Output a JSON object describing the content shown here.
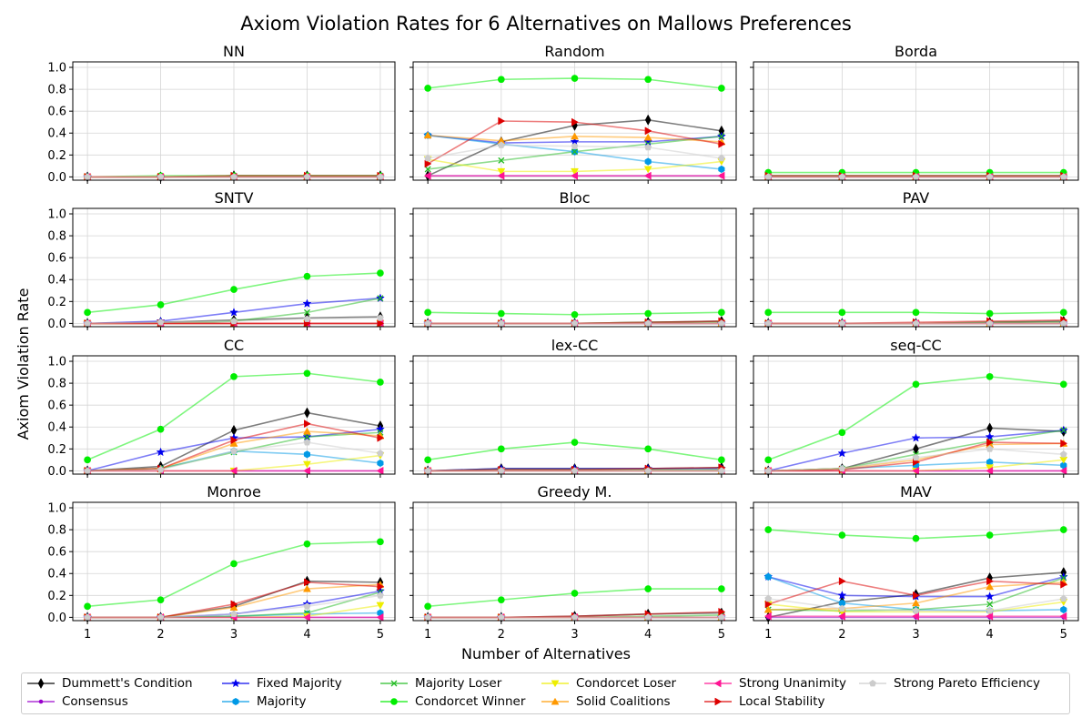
{
  "chart_data": {
    "type": "line",
    "title": "Axiom Violation Rates for 6 Alternatives on Mallows Preferences",
    "xlabel": "Number of Alternatives",
    "ylabel": "Axiom Violation Rate",
    "x": [
      1,
      2,
      3,
      4,
      5
    ],
    "xticks": [
      "1",
      "2",
      "3",
      "4",
      "5"
    ],
    "ylim": [
      -0.03,
      1.05
    ],
    "yticks": [
      "0.0",
      "0.2",
      "0.4",
      "0.6",
      "0.8",
      "1.0"
    ],
    "grid": true,
    "legend_placement": "bottom",
    "series_styles": [
      {
        "name": "Dummett's Condition",
        "color": "#000000",
        "marker": "thin_diamond"
      },
      {
        "name": "Consensus",
        "color": "#9900cc",
        "marker": "dot"
      },
      {
        "name": "Fixed Majority",
        "color": "#0000ee",
        "marker": "star"
      },
      {
        "name": "Majority",
        "color": "#0099e6",
        "marker": "hexagon"
      },
      {
        "name": "Majority Loser",
        "color": "#22bb22",
        "marker": "x"
      },
      {
        "name": "Condorcet Winner",
        "color": "#00ee00",
        "marker": "circle"
      },
      {
        "name": "Condorcet Loser",
        "color": "#eeee00",
        "marker": "triangle_down"
      },
      {
        "name": "Solid Coalitions",
        "color": "#ff9900",
        "marker": "triangle_up"
      },
      {
        "name": "Strong Unanimity",
        "color": "#ff1493",
        "marker": "triangle_left"
      },
      {
        "name": "Local Stability",
        "color": "#dd0000",
        "marker": "triangle_right"
      },
      {
        "name": "Strong Pareto Efficiency",
        "color": "#cccccc",
        "marker": "pentagon"
      }
    ],
    "subplots": [
      {
        "title": "NN",
        "values": [
          [
            0,
            0,
            0.01,
            0.01,
            0.01
          ],
          [
            0,
            0,
            0,
            0,
            0
          ],
          [
            0,
            0,
            0,
            0,
            0
          ],
          [
            0,
            0,
            0,
            0,
            0
          ],
          [
            0,
            0,
            0.01,
            0.01,
            0.01
          ],
          [
            0,
            0.01,
            0.01,
            0.01,
            0.01
          ],
          [
            0,
            0,
            0,
            0,
            0
          ],
          [
            0,
            0,
            0,
            0,
            0
          ],
          [
            0,
            0,
            0,
            0,
            0
          ],
          [
            0,
            0,
            0.01,
            0.01,
            0.01
          ],
          [
            0,
            0,
            0,
            0,
            0
          ]
        ]
      },
      {
        "title": "Random",
        "values": [
          [
            0.01,
            0.32,
            0.47,
            0.52,
            0.42
          ],
          [
            0.01,
            0.01,
            0.01,
            0.01,
            0.01
          ],
          [
            0.38,
            0.31,
            0.32,
            0.32,
            0.37
          ],
          [
            0.38,
            0.3,
            0.23,
            0.14,
            0.07
          ],
          [
            0.07,
            0.15,
            0.23,
            0.3,
            0.37
          ],
          [
            0.81,
            0.89,
            0.9,
            0.89,
            0.81
          ],
          [
            0.16,
            0.05,
            0.05,
            0.07,
            0.14
          ],
          [
            0.38,
            0.33,
            0.37,
            0.36,
            0.32
          ],
          [
            0.01,
            0.01,
            0.01,
            0.01,
            0.01
          ],
          [
            0.12,
            0.51,
            0.5,
            0.42,
            0.3
          ],
          [
            0.17,
            0.29,
            0.28,
            0.27,
            0.17
          ]
        ]
      },
      {
        "title": "Borda",
        "values": [
          [
            0.01,
            0.01,
            0.01,
            0.01,
            0.01
          ],
          [
            0,
            0,
            0,
            0,
            0
          ],
          [
            0,
            0,
            0,
            0,
            0
          ],
          [
            0,
            0,
            0,
            0,
            0
          ],
          [
            0.01,
            0.01,
            0.01,
            0.01,
            0.01
          ],
          [
            0.04,
            0.04,
            0.04,
            0.04,
            0.04
          ],
          [
            0,
            0,
            0,
            0,
            0
          ],
          [
            0,
            0,
            0,
            0,
            0
          ],
          [
            0,
            0,
            0,
            0,
            0
          ],
          [
            0.01,
            0.01,
            0.01,
            0.01,
            0.01
          ],
          [
            0,
            0,
            0,
            0,
            0
          ]
        ]
      },
      {
        "title": "SNTV",
        "values": [
          [
            0,
            0.01,
            0.03,
            0.05,
            0.06
          ],
          [
            0,
            0,
            0,
            0,
            0
          ],
          [
            0,
            0.02,
            0.1,
            0.18,
            0.23
          ],
          [
            0,
            0,
            0,
            0,
            0
          ],
          [
            0,
            0,
            0.02,
            0.1,
            0.23
          ],
          [
            0.1,
            0.17,
            0.31,
            0.43,
            0.46
          ],
          [
            0,
            0,
            0,
            0,
            0
          ],
          [
            0,
            0,
            0,
            0,
            0
          ],
          [
            0,
            0,
            0,
            0,
            0
          ],
          [
            0,
            0,
            0,
            0,
            0
          ],
          [
            0,
            0.01,
            0.02,
            0.04,
            0.05
          ]
        ]
      },
      {
        "title": "Bloc",
        "values": [
          [
            0,
            0,
            0,
            0.01,
            0.02
          ],
          [
            0,
            0,
            0,
            0,
            0
          ],
          [
            0,
            0,
            0,
            0,
            0
          ],
          [
            0,
            0,
            0,
            0,
            0
          ],
          [
            0,
            0,
            0,
            0.01,
            0.01
          ],
          [
            0.1,
            0.09,
            0.08,
            0.09,
            0.1
          ],
          [
            0,
            0,
            0,
            0,
            0
          ],
          [
            0,
            0,
            0,
            0,
            0
          ],
          [
            0,
            0,
            0,
            0,
            0
          ],
          [
            0,
            0,
            0,
            0.01,
            0.02
          ],
          [
            0,
            0,
            0,
            0,
            0
          ]
        ]
      },
      {
        "title": "PAV",
        "values": [
          [
            0,
            0,
            0,
            0.01,
            0.02
          ],
          [
            0,
            0,
            0,
            0,
            0
          ],
          [
            0,
            0,
            0,
            0,
            0
          ],
          [
            0,
            0,
            0,
            0,
            0
          ],
          [
            0,
            0,
            0,
            0.01,
            0.01
          ],
          [
            0.1,
            0.1,
            0.1,
            0.09,
            0.1
          ],
          [
            0,
            0,
            0,
            0,
            0
          ],
          [
            0,
            0,
            0,
            0,
            0
          ],
          [
            0,
            0,
            0,
            0,
            0
          ],
          [
            0,
            0,
            0.01,
            0.02,
            0.03
          ],
          [
            0,
            0,
            0,
            0,
            0
          ]
        ]
      },
      {
        "title": "CC",
        "values": [
          [
            0,
            0.04,
            0.37,
            0.53,
            0.41
          ],
          [
            0,
            0,
            0,
            0,
            0
          ],
          [
            0,
            0.17,
            0.3,
            0.31,
            0.38
          ],
          [
            0,
            0.02,
            0.18,
            0.15,
            0.07
          ],
          [
            0,
            0.02,
            0.17,
            0.31,
            0.35
          ],
          [
            0.1,
            0.38,
            0.86,
            0.89,
            0.81
          ],
          [
            0,
            0,
            0,
            0.06,
            0.14
          ],
          [
            0,
            0.02,
            0.25,
            0.36,
            0.32
          ],
          [
            0,
            0,
            0,
            0,
            0
          ],
          [
            0,
            0.02,
            0.28,
            0.43,
            0.3
          ],
          [
            0,
            0.01,
            0.18,
            0.26,
            0.16
          ]
        ]
      },
      {
        "title": "lex-CC",
        "values": [
          [
            0,
            0.02,
            0.02,
            0.02,
            0.03
          ],
          [
            0,
            0,
            0,
            0,
            0
          ],
          [
            0,
            0.02,
            0.02,
            0.02,
            0.02
          ],
          [
            0,
            0,
            0,
            0,
            0
          ],
          [
            0,
            0.01,
            0.01,
            0.01,
            0.01
          ],
          [
            0.1,
            0.2,
            0.26,
            0.2,
            0.1
          ],
          [
            0,
            0,
            0,
            0,
            0
          ],
          [
            0,
            0,
            0,
            0,
            0
          ],
          [
            0,
            0,
            0,
            0,
            0
          ],
          [
            0,
            0.01,
            0.01,
            0.02,
            0.03
          ],
          [
            0,
            0,
            0,
            0,
            0
          ]
        ]
      },
      {
        "title": "seq-CC",
        "values": [
          [
            0,
            0.02,
            0.2,
            0.39,
            0.36
          ],
          [
            0,
            0,
            0,
            0,
            0
          ],
          [
            0,
            0.16,
            0.3,
            0.31,
            0.37
          ],
          [
            0,
            0.02,
            0.05,
            0.08,
            0.05
          ],
          [
            0,
            0.02,
            0.15,
            0.27,
            0.37
          ],
          [
            0.1,
            0.35,
            0.79,
            0.86,
            0.79
          ],
          [
            0,
            0,
            0,
            0.03,
            0.1
          ],
          [
            0,
            0.02,
            0.1,
            0.24,
            0.25
          ],
          [
            0,
            0,
            0,
            0,
            0
          ],
          [
            0,
            0.01,
            0.08,
            0.26,
            0.25
          ],
          [
            0,
            0.02,
            0.12,
            0.2,
            0.15
          ]
        ]
      },
      {
        "title": "Monroe",
        "values": [
          [
            0,
            0,
            0.1,
            0.33,
            0.32
          ],
          [
            0,
            0,
            0,
            0,
            0
          ],
          [
            0,
            0,
            0.03,
            0.12,
            0.24
          ],
          [
            0,
            0,
            0.01,
            0.03,
            0.04
          ],
          [
            0,
            0,
            0.01,
            0.04,
            0.23
          ],
          [
            0.1,
            0.16,
            0.49,
            0.67,
            0.69
          ],
          [
            0,
            0,
            0,
            0.01,
            0.11
          ],
          [
            0,
            0,
            0.09,
            0.26,
            0.3
          ],
          [
            0,
            0,
            0,
            0,
            0
          ],
          [
            0,
            0,
            0.12,
            0.32,
            0.28
          ],
          [
            0,
            0,
            0.03,
            0.1,
            0.2
          ]
        ]
      },
      {
        "title": "Greedy M.",
        "values": [
          [
            0,
            0,
            0.01,
            0.03,
            0.04
          ],
          [
            0,
            0,
            0,
            0,
            0
          ],
          [
            0,
            0,
            0,
            0,
            0
          ],
          [
            0,
            0,
            0,
            0,
            0
          ],
          [
            0,
            0,
            0,
            0.01,
            0.02
          ],
          [
            0.1,
            0.16,
            0.22,
            0.26,
            0.26
          ],
          [
            0,
            0,
            0,
            0,
            0
          ],
          [
            0,
            0,
            0,
            0,
            0
          ],
          [
            0,
            0,
            0,
            0,
            0
          ],
          [
            0,
            0,
            0.01,
            0.03,
            0.05
          ],
          [
            0,
            0,
            0,
            0,
            0
          ]
        ]
      },
      {
        "title": "MAV",
        "values": [
          [
            0,
            0.14,
            0.21,
            0.36,
            0.41
          ],
          [
            0,
            0,
            0,
            0,
            0
          ],
          [
            0.37,
            0.2,
            0.19,
            0.19,
            0.37
          ],
          [
            0.37,
            0.13,
            0.07,
            0.06,
            0.07
          ],
          [
            0.07,
            0.06,
            0.07,
            0.12,
            0.36
          ],
          [
            0.8,
            0.75,
            0.72,
            0.75,
            0.8
          ],
          [
            0.12,
            0.05,
            0.05,
            0.05,
            0.14
          ],
          [
            0.07,
            0.08,
            0.13,
            0.28,
            0.32
          ],
          [
            0.01,
            0.01,
            0.01,
            0.01,
            0.01
          ],
          [
            0.12,
            0.33,
            0.2,
            0.33,
            0.3
          ],
          [
            0.17,
            0.08,
            0.06,
            0.06,
            0.17
          ]
        ]
      }
    ]
  }
}
